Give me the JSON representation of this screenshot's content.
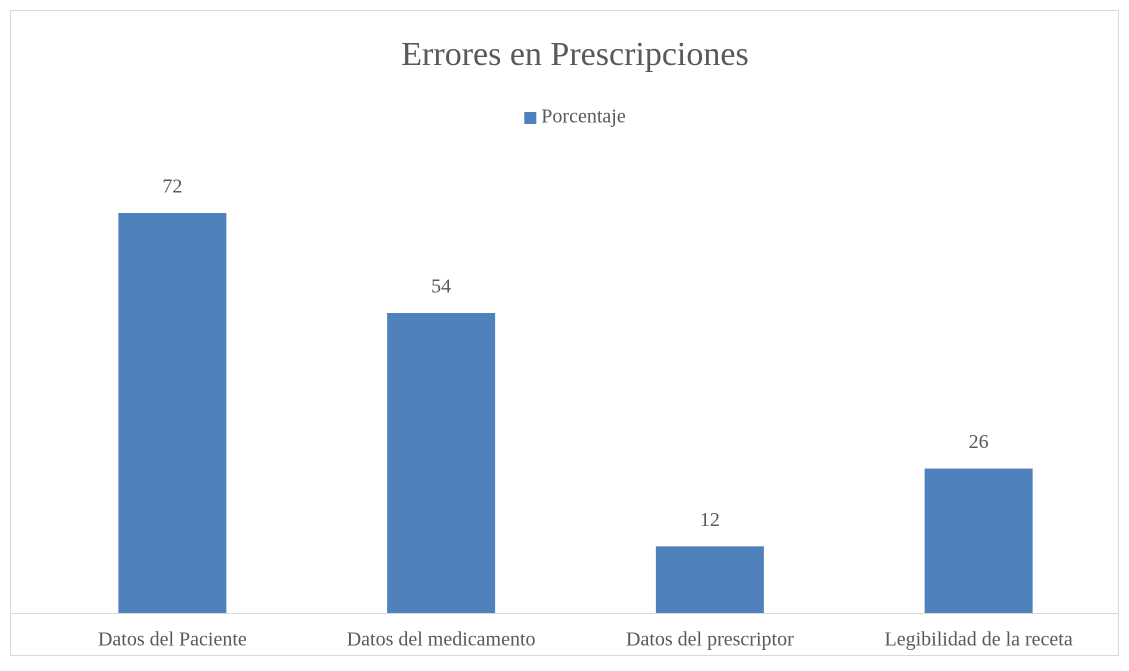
{
  "chart_data": {
    "type": "bar",
    "title": "Errores en Prescripciones",
    "categories": [
      "Datos del Paciente",
      "Datos del medicamento",
      "Datos del prescriptor",
      "Legibilidad de la receta"
    ],
    "series": [
      {
        "name": "Porcentaje",
        "color": "#4f81bd",
        "values": [
          72,
          54,
          12,
          26
        ]
      }
    ],
    "legend": "top"
  }
}
